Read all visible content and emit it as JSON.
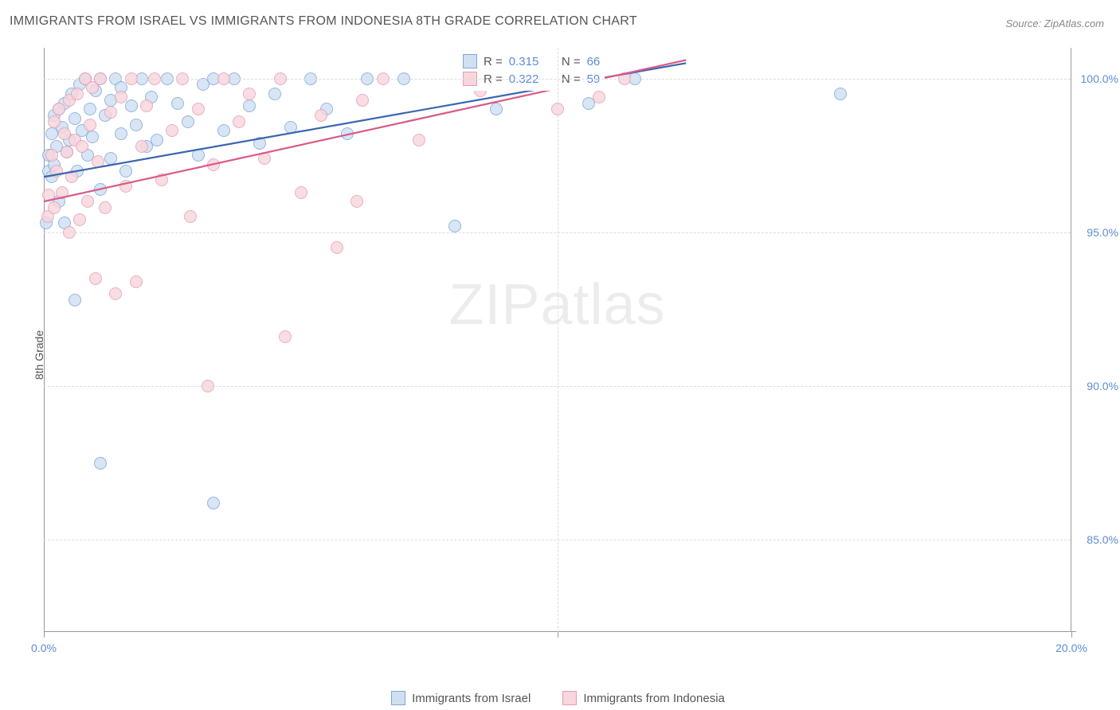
{
  "title": "IMMIGRANTS FROM ISRAEL VS IMMIGRANTS FROM INDONESIA 8TH GRADE CORRELATION CHART",
  "source_label": "Source: ZipAtlas.com",
  "watermark_main": "ZIP",
  "watermark_sub": "atlas",
  "y_axis_title": "8th Grade",
  "chart": {
    "type": "scatter",
    "xlim": [
      0,
      20
    ],
    "ylim": [
      82,
      101
    ],
    "x_ticks": [
      0,
      10,
      20
    ],
    "x_tick_labels": [
      "0.0%",
      "",
      "20.0%"
    ],
    "y_ticks": [
      85,
      90,
      95,
      100
    ],
    "y_tick_labels": [
      "85.0%",
      "90.0%",
      "95.0%",
      "100.0%"
    ],
    "background_color": "#ffffff",
    "grid_color": "#dddddd",
    "axis_color": "#999999",
    "marker_radius": 8,
    "marker_stroke_width": 1.5,
    "trend_line_width": 2.2,
    "series": [
      {
        "name": "Immigrants from Israel",
        "fill": "#cfe0f3",
        "stroke": "#7da7d9",
        "line_color": "#3a66b0",
        "r_value": "0.315",
        "n_value": "66",
        "trend": {
          "x1": 0,
          "y1": 96.8,
          "x2": 12.5,
          "y2": 100.5
        },
        "points": [
          [
            0.05,
            95.3
          ],
          [
            0.1,
            97.0
          ],
          [
            0.1,
            97.5
          ],
          [
            0.15,
            96.8
          ],
          [
            0.15,
            98.2
          ],
          [
            0.2,
            97.2
          ],
          [
            0.2,
            98.8
          ],
          [
            0.25,
            97.8
          ],
          [
            0.3,
            96.0
          ],
          [
            0.3,
            99.0
          ],
          [
            0.35,
            98.4
          ],
          [
            0.4,
            95.3
          ],
          [
            0.4,
            99.2
          ],
          [
            0.45,
            97.6
          ],
          [
            0.5,
            98.0
          ],
          [
            0.55,
            99.5
          ],
          [
            0.6,
            92.8
          ],
          [
            0.6,
            98.7
          ],
          [
            0.65,
            97.0
          ],
          [
            0.7,
            99.8
          ],
          [
            0.75,
            98.3
          ],
          [
            0.8,
            100.0
          ],
          [
            0.85,
            97.5
          ],
          [
            0.9,
            99.0
          ],
          [
            0.95,
            98.1
          ],
          [
            1.0,
            99.6
          ],
          [
            1.1,
            96.4
          ],
          [
            1.1,
            100.0
          ],
          [
            1.2,
            98.8
          ],
          [
            1.3,
            97.4
          ],
          [
            1.3,
            99.3
          ],
          [
            1.4,
            100.0
          ],
          [
            1.5,
            98.2
          ],
          [
            1.5,
            99.7
          ],
          [
            1.6,
            97.0
          ],
          [
            1.7,
            99.1
          ],
          [
            1.8,
            98.5
          ],
          [
            1.9,
            100.0
          ],
          [
            2.0,
            97.8
          ],
          [
            2.1,
            99.4
          ],
          [
            2.2,
            98.0
          ],
          [
            2.4,
            100.0
          ],
          [
            2.6,
            99.2
          ],
          [
            2.8,
            98.6
          ],
          [
            3.0,
            97.5
          ],
          [
            3.1,
            99.8
          ],
          [
            3.3,
            100.0
          ],
          [
            3.5,
            98.3
          ],
          [
            3.7,
            100.0
          ],
          [
            4.0,
            99.1
          ],
          [
            4.2,
            97.9
          ],
          [
            4.5,
            99.5
          ],
          [
            4.8,
            98.4
          ],
          [
            5.2,
            100.0
          ],
          [
            5.5,
            99.0
          ],
          [
            5.9,
            98.2
          ],
          [
            6.3,
            100.0
          ],
          [
            7.0,
            100.0
          ],
          [
            8.0,
            95.2
          ],
          [
            8.8,
            99.0
          ],
          [
            10.2,
            100.0
          ],
          [
            10.6,
            99.2
          ],
          [
            11.5,
            100.0
          ],
          [
            15.5,
            99.5
          ],
          [
            1.1,
            87.5
          ],
          [
            3.3,
            86.2
          ]
        ]
      },
      {
        "name": "Immigrants from Indonesia",
        "fill": "#f7d6de",
        "stroke": "#e89db0",
        "line_color": "#d95a87",
        "r_value": "0.322",
        "n_value": "59",
        "trend": {
          "x1": 0,
          "y1": 96.0,
          "x2": 12.5,
          "y2": 100.6
        },
        "points": [
          [
            0.08,
            95.5
          ],
          [
            0.1,
            96.2
          ],
          [
            0.15,
            97.5
          ],
          [
            0.2,
            95.8
          ],
          [
            0.2,
            98.6
          ],
          [
            0.25,
            97.0
          ],
          [
            0.3,
            99.0
          ],
          [
            0.35,
            96.3
          ],
          [
            0.4,
            98.2
          ],
          [
            0.45,
            97.6
          ],
          [
            0.5,
            95.0
          ],
          [
            0.5,
            99.3
          ],
          [
            0.55,
            96.8
          ],
          [
            0.6,
            98.0
          ],
          [
            0.65,
            99.5
          ],
          [
            0.7,
            95.4
          ],
          [
            0.75,
            97.8
          ],
          [
            0.8,
            100.0
          ],
          [
            0.85,
            96.0
          ],
          [
            0.9,
            98.5
          ],
          [
            0.95,
            99.7
          ],
          [
            1.0,
            93.5
          ],
          [
            1.05,
            97.3
          ],
          [
            1.1,
            100.0
          ],
          [
            1.2,
            95.8
          ],
          [
            1.3,
            98.9
          ],
          [
            1.4,
            93.0
          ],
          [
            1.5,
            99.4
          ],
          [
            1.6,
            96.5
          ],
          [
            1.7,
            100.0
          ],
          [
            1.8,
            93.4
          ],
          [
            1.9,
            97.8
          ],
          [
            2.0,
            99.1
          ],
          [
            2.15,
            100.0
          ],
          [
            2.3,
            96.7
          ],
          [
            2.5,
            98.3
          ],
          [
            2.7,
            100.0
          ],
          [
            2.85,
            95.5
          ],
          [
            3.0,
            99.0
          ],
          [
            3.2,
            90.0
          ],
          [
            3.3,
            97.2
          ],
          [
            3.5,
            100.0
          ],
          [
            3.8,
            98.6
          ],
          [
            4.0,
            99.5
          ],
          [
            4.3,
            97.4
          ],
          [
            4.6,
            100.0
          ],
          [
            4.7,
            91.6
          ],
          [
            5.0,
            96.3
          ],
          [
            5.4,
            98.8
          ],
          [
            5.7,
            94.5
          ],
          [
            6.1,
            96.0
          ],
          [
            6.2,
            99.3
          ],
          [
            6.6,
            100.0
          ],
          [
            7.3,
            98.0
          ],
          [
            8.5,
            99.6
          ],
          [
            9.4,
            100.0
          ],
          [
            10.0,
            99.0
          ],
          [
            10.8,
            99.4
          ],
          [
            11.3,
            100.0
          ]
        ]
      }
    ],
    "stats_labels": {
      "r_prefix": "R = ",
      "n_prefix": "N = "
    },
    "legend_labels": [
      "Immigrants from Israel",
      "Immigrants from Indonesia"
    ]
  }
}
